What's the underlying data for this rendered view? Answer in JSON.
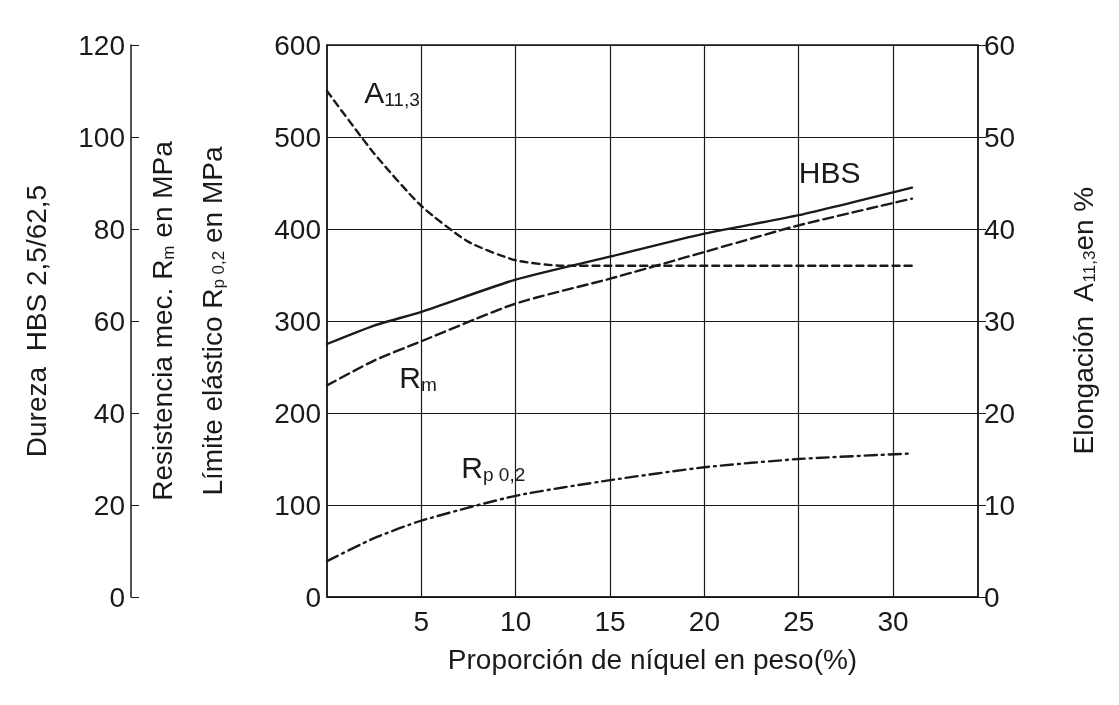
{
  "chart_data": {
    "type": "line",
    "xlabel": "Proporción de níquel en peso(%)",
    "ylabel": "Resistencia mec. R$_{m}$ en MPa\nLímite elástico R$_{p 0,2}$ en MPa",
    "y2label": "Elongación  A$_{11,3}$en %",
    "y3label": "Dureza  HBS 2,5/62,5",
    "xlim": [
      0,
      34.5
    ],
    "xticks": [
      5,
      10,
      15,
      20,
      25,
      30
    ],
    "ylim": [
      0,
      600
    ],
    "yticks": [
      0,
      100,
      200,
      300,
      400,
      500,
      600
    ],
    "y2lim": [
      0,
      60
    ],
    "y2ticks": [
      0,
      10,
      20,
      30,
      40,
      50,
      60
    ],
    "y3lim": [
      0,
      120
    ],
    "y3ticks": [
      0,
      20,
      40,
      60,
      80,
      100,
      120
    ],
    "grid": true,
    "legend": false,
    "marker": "none",
    "series": [
      {
        "name": "HBS",
        "axis": "y3",
        "color": "#1a1a1a",
        "line_style": "solid",
        "x": [
          0,
          2.5,
          5,
          10,
          15,
          20,
          25,
          31
        ],
        "values": [
          55,
          59,
          62,
          69,
          74,
          79,
          83,
          89
        ]
      },
      {
        "name": "R$_{m}$",
        "color": "#1a1a1a",
        "line_style": "dashed",
        "x": [
          0,
          2.5,
          5,
          10,
          15,
          20,
          25,
          31
        ],
        "values": [
          230,
          257,
          278,
          319,
          346,
          375,
          404,
          433
        ]
      },
      {
        "name": "R$_{p 0,2}$",
        "color": "#1a1a1a",
        "line_style": "dashdot",
        "x": [
          0,
          2.5,
          5,
          10,
          15,
          20,
          25,
          31
        ],
        "values": [
          39,
          64,
          83,
          110,
          127,
          141,
          150,
          156
        ]
      },
      {
        "name": "A$_{11,3}$",
        "axis": "y2",
        "color": "#1a1a1a",
        "line_style": "dotted",
        "x": [
          0,
          2.5,
          5,
          7.5,
          10,
          12.5,
          15,
          20,
          25,
          31
        ],
        "values": [
          55,
          48.2,
          42.5,
          38.6,
          36.6,
          36,
          36,
          36,
          36,
          36
        ]
      }
    ]
  }
}
